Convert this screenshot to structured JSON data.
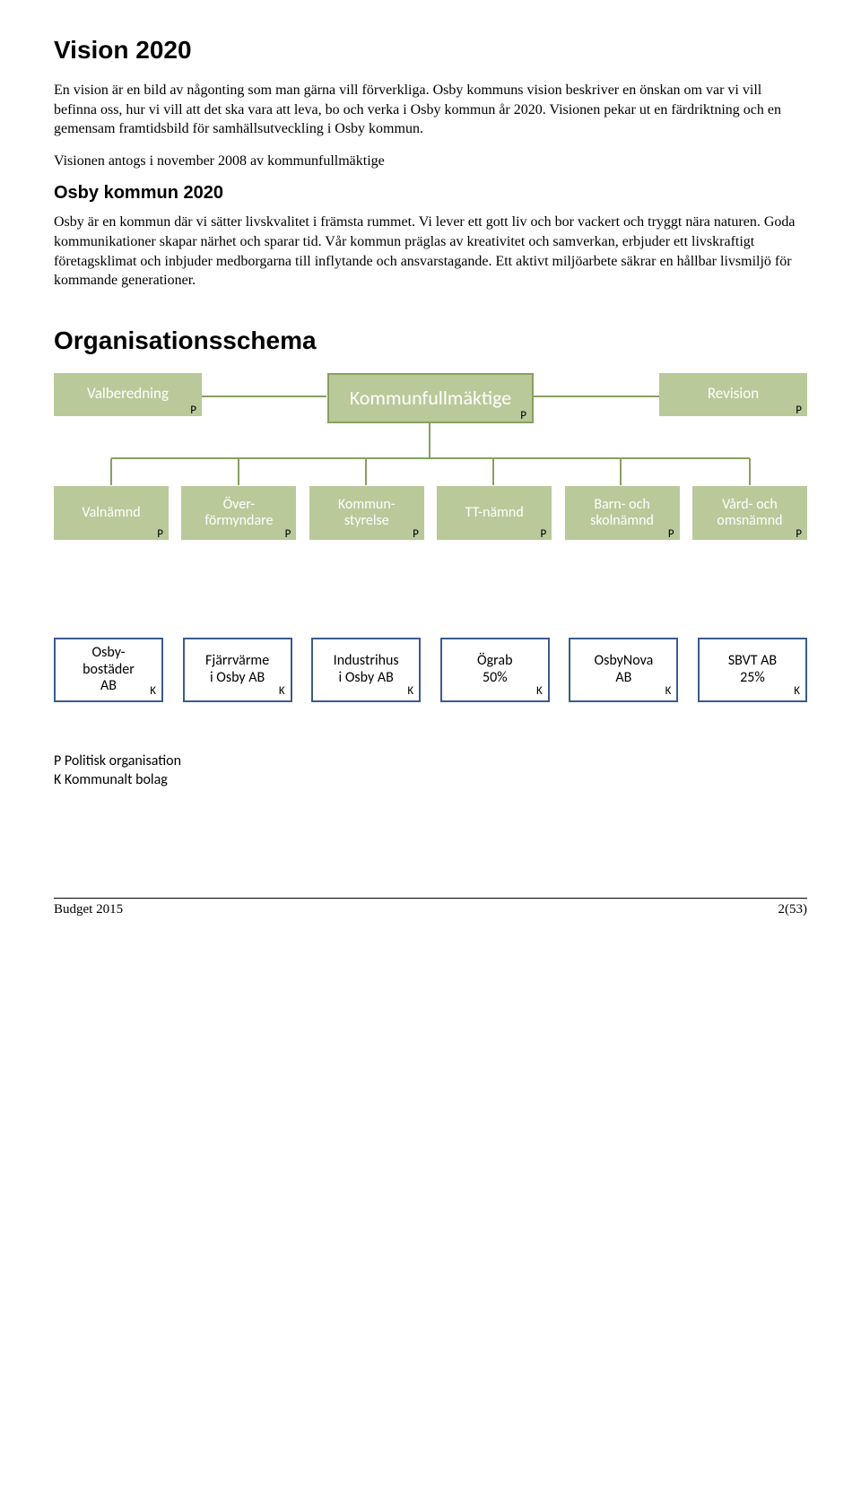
{
  "title": "Vision 2020",
  "p1": "En vision är en bild av någonting som man gärna vill förverkliga. Osby kommuns vision beskriver en önskan om var vi vill befinna oss, hur vi vill att det ska vara att leva, bo och verka i Osby kommun år 2020. Visionen pekar ut en färdriktning och en gemensam framtidsbild för samhällsutveckling i Osby kommun.",
  "p2": "Visionen antogs i november 2008 av kommunfullmäktige",
  "h2": "Osby kommun 2020",
  "p3": "Osby är en kommun där vi sätter livskvalitet i främsta rummet. Vi lever ett gott liv och bor vackert och tryggt nära naturen. Goda kommunikationer skapar närhet och sparar tid. Vår kommun präglas av kreativitet och samverkan, erbjuder ett livskraftigt företagsklimat och inbjuder medborgarna till inflytande och ansvarstagande. Ett aktivt miljöarbete säkrar en hållbar livsmiljö för kommande generationer.",
  "org_title": "Organisationsschema",
  "org": {
    "colors": {
      "green_fill": "#b9c99a",
      "green_border": "#88a060",
      "green_text": "#ffffff",
      "blue_border": "#3b5b8c",
      "connector": "#88a060"
    },
    "top": {
      "left": {
        "label": "Valberedning",
        "tag": "P"
      },
      "center": {
        "label": "Kommunfullmäktige",
        "tag": "P"
      },
      "right": {
        "label": "Revision",
        "tag": "P"
      }
    },
    "row2": [
      {
        "label": "Valnämnd",
        "tag": "P"
      },
      {
        "label": "Över-\nförmyndare",
        "tag": "P"
      },
      {
        "label": "Kommun-\nstyrelse",
        "tag": "P"
      },
      {
        "label": "TT-nämnd",
        "tag": "P"
      },
      {
        "label": "Barn- och\nskolnämnd",
        "tag": "P"
      },
      {
        "label": "Vård- och\nomsnämnd",
        "tag": "P"
      }
    ],
    "companies": [
      {
        "l1": "Osby-",
        "l2": "bostäder",
        "l3": "AB",
        "tag": "K"
      },
      {
        "l1": "Fjärrvärme",
        "l2": "i Osby AB",
        "l3": "",
        "tag": "K"
      },
      {
        "l1": "Industrihus",
        "l2": "i Osby AB",
        "l3": "",
        "tag": "K"
      },
      {
        "l1": "Ögrab",
        "l2": "50%",
        "l3": "",
        "tag": "K"
      },
      {
        "l1": "OsbyNova",
        "l2": "AB",
        "l3": "",
        "tag": "K"
      },
      {
        "l1": "SBVT AB",
        "l2": "25%",
        "l3": "",
        "tag": "K"
      }
    ],
    "legend": [
      "P Politisk organisation",
      "K Kommunalt bolag"
    ]
  },
  "footer": {
    "left": "Budget 2015",
    "right": "2(53)"
  }
}
